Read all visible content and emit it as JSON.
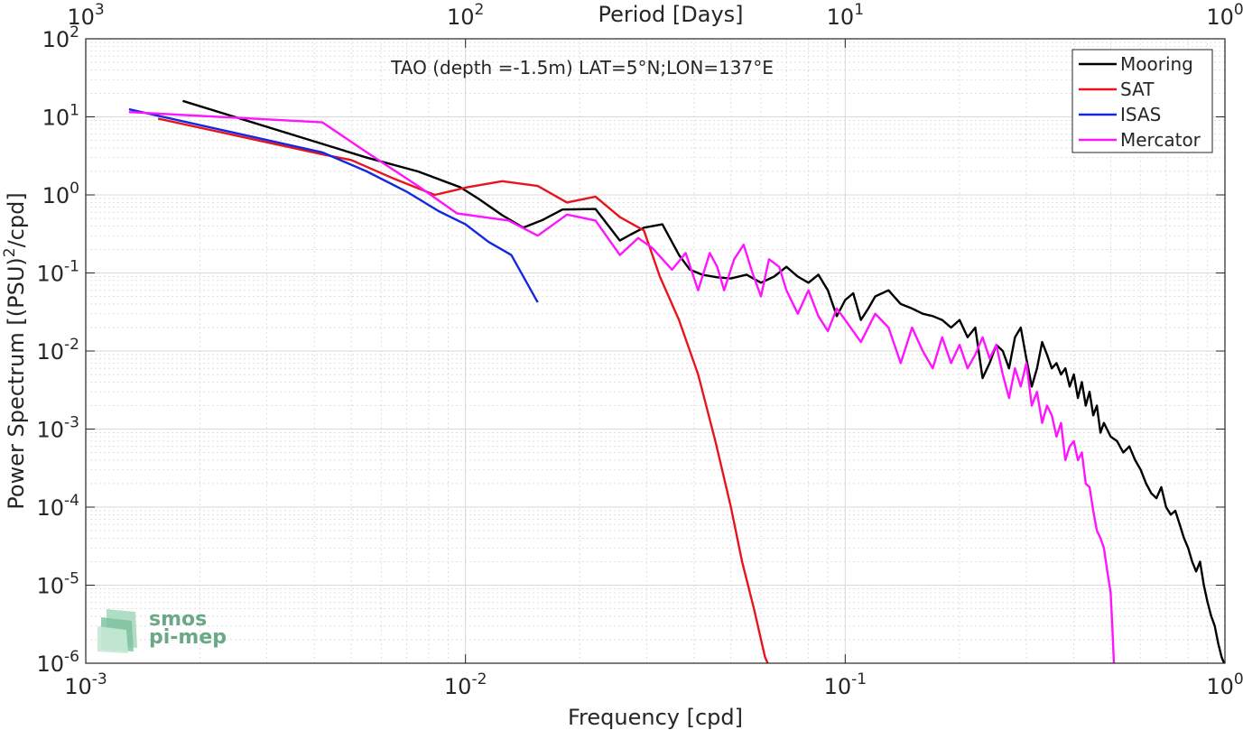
{
  "chart_data": {
    "type": "line",
    "title": "",
    "annotation": "TAO (depth =-1.5m) LAT=5°N;LON=137°E",
    "xlabel": "Frequency [cpd]",
    "ylabel_main": "Power Spectrum [(PSU)",
    "ylabel_sup": "2",
    "ylabel_tail": "/cpd]",
    "top_xlabel": "Period [Days]",
    "xscale": "log",
    "yscale": "log",
    "xlim": [
      0.001,
      1
    ],
    "ylim": [
      1e-06,
      100
    ],
    "grid": true,
    "legend_position": "top-right",
    "x_ticks": [
      {
        "value": 0.001,
        "base": "10",
        "exp": "-3"
      },
      {
        "value": 0.01,
        "base": "10",
        "exp": "-2"
      },
      {
        "value": 0.1,
        "base": "10",
        "exp": "-1"
      },
      {
        "value": 1,
        "base": "10",
        "exp": "0"
      }
    ],
    "y_ticks": [
      {
        "value": 1e-06,
        "base": "10",
        "exp": "-6"
      },
      {
        "value": 1e-05,
        "base": "10",
        "exp": "-5"
      },
      {
        "value": 0.0001,
        "base": "10",
        "exp": "-4"
      },
      {
        "value": 0.001,
        "base": "10",
        "exp": "-3"
      },
      {
        "value": 0.01,
        "base": "10",
        "exp": "-2"
      },
      {
        "value": 0.1,
        "base": "10",
        "exp": "-1"
      },
      {
        "value": 1,
        "base": "10",
        "exp": "0"
      },
      {
        "value": 10,
        "base": "10",
        "exp": "1"
      },
      {
        "value": 100,
        "base": "10",
        "exp": "2"
      }
    ],
    "top_ticks": [
      {
        "frequency": 0.001,
        "base": "10",
        "exp": "3"
      },
      {
        "frequency": 0.01,
        "base": "10",
        "exp": "2"
      },
      {
        "frequency": 0.1,
        "base": "10",
        "exp": "1"
      },
      {
        "frequency": 1,
        "base": "10",
        "exp": "0"
      }
    ],
    "series": [
      {
        "name": "Mooring",
        "color": "#000000",
        "points": [
          [
            0.0018,
            16
          ],
          [
            0.0042,
            4.5
          ],
          [
            0.0055,
            3.0
          ],
          [
            0.0075,
            2.0
          ],
          [
            0.0097,
            1.25
          ],
          [
            0.0108,
            0.9
          ],
          [
            0.0125,
            0.55
          ],
          [
            0.0142,
            0.38
          ],
          [
            0.016,
            0.48
          ],
          [
            0.018,
            0.65
          ],
          [
            0.022,
            0.66
          ],
          [
            0.0255,
            0.26
          ],
          [
            0.0272,
            0.31
          ],
          [
            0.0295,
            0.38
          ],
          [
            0.033,
            0.42
          ],
          [
            0.0365,
            0.17
          ],
          [
            0.039,
            0.11
          ],
          [
            0.042,
            0.095
          ],
          [
            0.046,
            0.088
          ],
          [
            0.05,
            0.085
          ],
          [
            0.055,
            0.095
          ],
          [
            0.06,
            0.075
          ],
          [
            0.065,
            0.09
          ],
          [
            0.07,
            0.12
          ],
          [
            0.075,
            0.09
          ],
          [
            0.08,
            0.075
          ],
          [
            0.085,
            0.095
          ],
          [
            0.09,
            0.06
          ],
          [
            0.095,
            0.028
          ],
          [
            0.1,
            0.045
          ],
          [
            0.105,
            0.055
          ],
          [
            0.11,
            0.025
          ],
          [
            0.115,
            0.035
          ],
          [
            0.12,
            0.05
          ],
          [
            0.13,
            0.06
          ],
          [
            0.14,
            0.04
          ],
          [
            0.15,
            0.035
          ],
          [
            0.16,
            0.03
          ],
          [
            0.17,
            0.028
          ],
          [
            0.18,
            0.025
          ],
          [
            0.19,
            0.02
          ],
          [
            0.2,
            0.025
          ],
          [
            0.21,
            0.015
          ],
          [
            0.22,
            0.02
          ],
          [
            0.23,
            0.0045
          ],
          [
            0.24,
            0.007
          ],
          [
            0.25,
            0.012
          ],
          [
            0.26,
            0.01
          ],
          [
            0.27,
            0.006
          ],
          [
            0.28,
            0.015
          ],
          [
            0.29,
            0.02
          ],
          [
            0.3,
            0.008
          ],
          [
            0.31,
            0.0035
          ],
          [
            0.32,
            0.006
          ],
          [
            0.33,
            0.013
          ],
          [
            0.34,
            0.009
          ],
          [
            0.35,
            0.006
          ],
          [
            0.36,
            0.007
          ],
          [
            0.37,
            0.005
          ],
          [
            0.38,
            0.006
          ],
          [
            0.39,
            0.0035
          ],
          [
            0.4,
            0.005
          ],
          [
            0.41,
            0.0025
          ],
          [
            0.42,
            0.004
          ],
          [
            0.43,
            0.002
          ],
          [
            0.44,
            0.003
          ],
          [
            0.45,
            0.0015
          ],
          [
            0.46,
            0.002
          ],
          [
            0.47,
            0.0009
          ],
          [
            0.48,
            0.0012
          ],
          [
            0.5,
            0.0008
          ],
          [
            0.52,
            0.0007
          ],
          [
            0.54,
            0.0005
          ],
          [
            0.56,
            0.0006
          ],
          [
            0.58,
            0.0004
          ],
          [
            0.6,
            0.0003
          ],
          [
            0.62,
            0.0002
          ],
          [
            0.64,
            0.00015
          ],
          [
            0.66,
            0.00013
          ],
          [
            0.68,
            0.00018
          ],
          [
            0.7,
            0.0001
          ],
          [
            0.72,
            8e-05
          ],
          [
            0.74,
            9e-05
          ],
          [
            0.76,
            6e-05
          ],
          [
            0.78,
            4e-05
          ],
          [
            0.8,
            3e-05
          ],
          [
            0.82,
            2e-05
          ],
          [
            0.84,
            1.5e-05
          ],
          [
            0.86,
            2e-05
          ],
          [
            0.88,
            1e-05
          ],
          [
            0.9,
            6e-06
          ],
          [
            0.92,
            4e-06
          ],
          [
            0.94,
            3e-06
          ],
          [
            0.96,
            1.8e-06
          ],
          [
            0.98,
            1.2e-06
          ],
          [
            0.995,
            1e-06
          ]
        ]
      },
      {
        "name": "SAT",
        "color": "#e8141c",
        "points": [
          [
            0.00155,
            9.5
          ],
          [
            0.0042,
            3.3
          ],
          [
            0.005,
            2.8
          ],
          [
            0.0065,
            1.6
          ],
          [
            0.0083,
            1.0
          ],
          [
            0.0101,
            1.25
          ],
          [
            0.0125,
            1.5
          ],
          [
            0.0155,
            1.3
          ],
          [
            0.0185,
            0.8
          ],
          [
            0.022,
            0.95
          ],
          [
            0.0255,
            0.52
          ],
          [
            0.0295,
            0.35
          ],
          [
            0.0325,
            0.09
          ],
          [
            0.0365,
            0.025
          ],
          [
            0.041,
            0.005
          ],
          [
            0.0455,
            0.0007
          ],
          [
            0.05,
            0.0001
          ],
          [
            0.0535,
            2e-05
          ],
          [
            0.0575,
            5e-06
          ],
          [
            0.0615,
            1.2e-06
          ],
          [
            0.0625,
            1e-06
          ]
        ]
      },
      {
        "name": "ISAS",
        "color": "#1428e0",
        "points": [
          [
            0.0013,
            12.5
          ],
          [
            0.0042,
            3.5
          ],
          [
            0.0055,
            2.0
          ],
          [
            0.007,
            1.1
          ],
          [
            0.0085,
            0.62
          ],
          [
            0.01,
            0.42
          ],
          [
            0.0115,
            0.25
          ],
          [
            0.0132,
            0.17
          ],
          [
            0.0155,
            0.042
          ]
        ]
      },
      {
        "name": "Mercator",
        "color": "#ff14ff",
        "points": [
          [
            0.0013,
            11.5
          ],
          [
            0.0042,
            8.5
          ],
          [
            0.0055,
            3.5
          ],
          [
            0.0075,
            1.3
          ],
          [
            0.0095,
            0.58
          ],
          [
            0.013,
            0.47
          ],
          [
            0.0155,
            0.3
          ],
          [
            0.0185,
            0.56
          ],
          [
            0.022,
            0.47
          ],
          [
            0.0255,
            0.17
          ],
          [
            0.0285,
            0.28
          ],
          [
            0.031,
            0.21
          ],
          [
            0.035,
            0.11
          ],
          [
            0.038,
            0.18
          ],
          [
            0.041,
            0.06
          ],
          [
            0.044,
            0.18
          ],
          [
            0.046,
            0.12
          ],
          [
            0.048,
            0.06
          ],
          [
            0.051,
            0.15
          ],
          [
            0.054,
            0.23
          ],
          [
            0.057,
            0.1
          ],
          [
            0.06,
            0.05
          ],
          [
            0.063,
            0.15
          ],
          [
            0.067,
            0.12
          ],
          [
            0.07,
            0.06
          ],
          [
            0.075,
            0.03
          ],
          [
            0.08,
            0.06
          ],
          [
            0.085,
            0.028
          ],
          [
            0.09,
            0.018
          ],
          [
            0.095,
            0.035
          ],
          [
            0.1,
            0.025
          ],
          [
            0.11,
            0.013
          ],
          [
            0.12,
            0.03
          ],
          [
            0.13,
            0.02
          ],
          [
            0.14,
            0.007
          ],
          [
            0.15,
            0.02
          ],
          [
            0.16,
            0.01
          ],
          [
            0.17,
            0.006
          ],
          [
            0.18,
            0.015
          ],
          [
            0.19,
            0.007
          ],
          [
            0.2,
            0.012
          ],
          [
            0.21,
            0.006
          ],
          [
            0.22,
            0.009
          ],
          [
            0.23,
            0.015
          ],
          [
            0.24,
            0.008
          ],
          [
            0.25,
            0.012
          ],
          [
            0.26,
            0.005
          ],
          [
            0.27,
            0.0025
          ],
          [
            0.28,
            0.006
          ],
          [
            0.29,
            0.0035
          ],
          [
            0.3,
            0.007
          ],
          [
            0.31,
            0.002
          ],
          [
            0.32,
            0.003
          ],
          [
            0.33,
            0.0012
          ],
          [
            0.34,
            0.002
          ],
          [
            0.35,
            0.0015
          ],
          [
            0.36,
            0.0008
          ],
          [
            0.37,
            0.0012
          ],
          [
            0.38,
            0.0004
          ],
          [
            0.39,
            0.0006
          ],
          [
            0.4,
            0.0007
          ],
          [
            0.41,
            0.0004
          ],
          [
            0.42,
            0.0005
          ],
          [
            0.43,
            0.0002
          ],
          [
            0.44,
            0.00018
          ],
          [
            0.45,
            9e-05
          ],
          [
            0.46,
            5e-05
          ],
          [
            0.47,
            4e-05
          ],
          [
            0.48,
            3e-05
          ],
          [
            0.49,
            1.5e-05
          ],
          [
            0.5,
            8e-06
          ],
          [
            0.505,
            3e-06
          ],
          [
            0.51,
            1e-06
          ]
        ]
      }
    ]
  },
  "logo": {
    "line1": "smos",
    "line2": "pi-mep"
  }
}
